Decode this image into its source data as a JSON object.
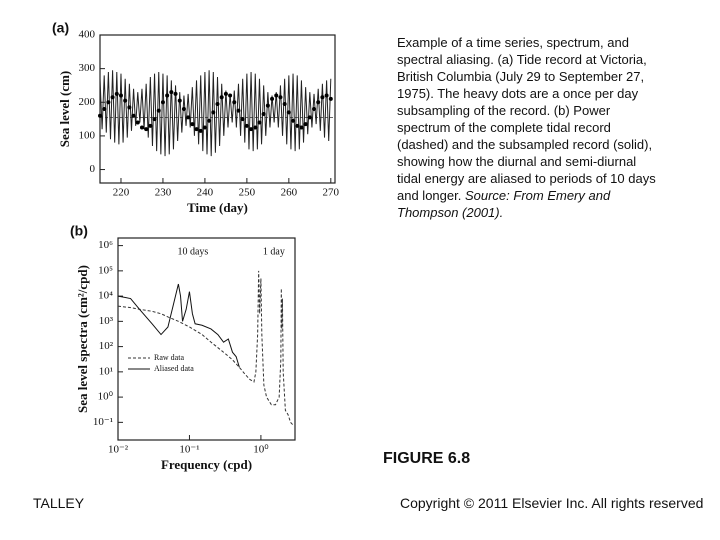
{
  "chart_data": [
    {
      "type": "line",
      "panel_label": "(a)",
      "x_label": "Time (day)",
      "y_label": "Sea level (cm)",
      "xlim": [
        215,
        271
      ],
      "ylim": [
        -40,
        400
      ],
      "xticks": [
        220,
        230,
        240,
        250,
        260,
        270
      ],
      "yticks": [
        0,
        100,
        200,
        300,
        400
      ],
      "hline": 155,
      "series": [
        {
          "color": "#222222",
          "linestyle": "solid",
          "x": [
            215,
            215.5,
            216,
            216.5,
            217,
            217.5,
            218,
            218.5,
            219,
            219.5,
            220,
            220.5,
            221,
            221.5,
            222,
            222.5,
            223,
            223.5,
            224,
            224.5,
            225,
            225.5,
            226,
            226.5,
            227,
            227.5,
            228,
            228.5,
            229,
            229.5,
            230,
            230.5,
            231,
            231.5,
            232,
            232.5,
            233,
            233.5,
            234,
            234.5,
            235,
            235.5,
            236,
            236.5,
            237,
            237.5,
            238,
            238.5,
            239,
            239.5,
            240,
            240.5,
            241,
            241.5,
            242,
            242.5,
            243,
            243.5,
            244,
            244.5,
            245,
            245.5,
            246,
            246.5,
            247,
            247.5,
            248,
            248.5,
            249,
            249.5,
            250,
            250.5,
            251,
            251.5,
            252,
            252.5,
            253,
            253.5,
            254,
            254.5,
            255,
            255.5,
            256,
            256.5,
            257,
            257.5,
            258,
            258.5,
            259,
            259.5,
            260,
            260.5,
            261,
            261.5,
            262,
            262.5,
            263,
            263.5,
            264,
            264.5,
            265,
            265.5,
            266,
            266.5,
            267,
            267.5,
            268,
            268.5,
            269,
            269.5,
            270
          ],
          "values": [
            270,
            120,
            280,
            110,
            290,
            90,
            295,
            80,
            290,
            75,
            285,
            80,
            270,
            95,
            255,
            115,
            240,
            130,
            230,
            140,
            240,
            120,
            255,
            95,
            275,
            70,
            285,
            55,
            290,
            45,
            285,
            40,
            280,
            45,
            265,
            60,
            250,
            85,
            230,
            110,
            220,
            130,
            225,
            125,
            245,
            100,
            265,
            75,
            280,
            55,
            290,
            45,
            295,
            40,
            290,
            50,
            275,
            70,
            255,
            100,
            235,
            125,
            225,
            140,
            235,
            125,
            255,
            100,
            270,
            80,
            285,
            60,
            290,
            55,
            285,
            60,
            270,
            75,
            250,
            100,
            230,
            125,
            220,
            140,
            230,
            125,
            250,
            100,
            270,
            75,
            280,
            60,
            285,
            55,
            280,
            60,
            265,
            80,
            245,
            105,
            230,
            125,
            225,
            135,
            240,
            115,
            255,
            95,
            265,
            85,
            270
          ]
        },
        {
          "color": "#000000",
          "marker": "dot",
          "x": [
            215,
            216,
            217,
            218,
            219,
            220,
            221,
            222,
            223,
            224,
            225,
            226,
            227,
            228,
            229,
            230,
            231,
            232,
            233,
            234,
            235,
            236,
            237,
            238,
            239,
            240,
            241,
            242,
            243,
            244,
            245,
            246,
            247,
            248,
            249,
            250,
            251,
            252,
            253,
            254,
            255,
            256,
            257,
            258,
            259,
            260,
            261,
            262,
            263,
            264,
            265,
            266,
            267,
            268,
            269,
            270
          ],
          "values": [
            160,
            180,
            200,
            215,
            225,
            220,
            205,
            185,
            160,
            140,
            125,
            120,
            130,
            150,
            175,
            200,
            220,
            230,
            225,
            205,
            180,
            155,
            135,
            120,
            115,
            125,
            145,
            170,
            195,
            215,
            225,
            220,
            200,
            175,
            150,
            130,
            120,
            125,
            140,
            165,
            190,
            210,
            220,
            215,
            195,
            170,
            145,
            130,
            125,
            135,
            155,
            180,
            200,
            215,
            220,
            210
          ]
        }
      ]
    },
    {
      "type": "line",
      "panel_label": "(b)",
      "x_label": "Frequency (cpd)",
      "y_label": "Sea level spectra (cm²/cpd)",
      "xscale": "log",
      "yscale": "log",
      "xlim": [
        0.01,
        3
      ],
      "ylim": [
        0.02,
        2000000
      ],
      "xticks": [
        {
          "value": 0.01,
          "label": "10⁻²"
        },
        {
          "value": 0.1,
          "label": "10⁻¹"
        },
        {
          "value": 1,
          "label": "10⁰"
        }
      ],
      "yticks": [
        {
          "value": 0.1,
          "label": "10⁻¹"
        },
        {
          "value": 1,
          "label": "10⁰"
        },
        {
          "value": 10,
          "label": "10¹"
        },
        {
          "value": 100,
          "label": "10²"
        },
        {
          "value": 1000,
          "label": "10³"
        },
        {
          "value": 10000,
          "label": "10⁴"
        },
        {
          "value": 100000,
          "label": "10⁵"
        },
        {
          "value": 1000000,
          "label": "10⁶"
        }
      ],
      "annotations": [
        "10 days",
        "1 day"
      ],
      "legend": "lower-left",
      "series": [
        {
          "name": "Raw data",
          "color": "#333333",
          "linestyle": "dashed",
          "x": [
            0.01,
            0.015,
            0.02,
            0.03,
            0.04,
            0.05,
            0.07,
            0.1,
            0.15,
            0.2,
            0.3,
            0.4,
            0.5,
            0.6,
            0.7,
            0.8,
            0.85,
            0.9,
            0.93,
            0.96,
            1.0,
            1.03,
            1.1,
            1.2,
            1.4,
            1.6,
            1.8,
            1.9,
            1.93,
            1.96,
            2.0,
            2.05,
            2.2,
            2.4,
            2.6,
            2.8
          ],
          "values": [
            4000,
            3500,
            3000,
            2500,
            2000,
            1500,
            1000,
            600,
            300,
            150,
            60,
            30,
            15,
            8,
            5,
            4,
            10,
            300,
            100000,
            2000,
            50000,
            300,
            3,
            1,
            0.5,
            0.5,
            1,
            30,
            20000,
            500,
            8000,
            10,
            0.3,
            0.2,
            0.1,
            0.08
          ]
        },
        {
          "name": "Aliased data",
          "color": "#111111",
          "linestyle": "solid",
          "x": [
            0.01,
            0.015,
            0.02,
            0.03,
            0.04,
            0.05,
            0.06,
            0.07,
            0.075,
            0.08,
            0.09,
            0.1,
            0.11,
            0.12,
            0.15,
            0.2,
            0.25,
            0.3,
            0.35,
            0.4,
            0.45,
            0.5
          ],
          "values": [
            10000,
            8000,
            3000,
            800,
            300,
            600,
            5000,
            30000,
            10000,
            1000,
            3000,
            15000,
            2000,
            800,
            700,
            500,
            300,
            150,
            200,
            60,
            40,
            15
          ]
        }
      ]
    }
  ],
  "caption": "Example of a time series, spectrum, and spectral aliasing. (a) Tide record at Victoria, British Columbia (July 29 to September 27, 1975). The heavy dots are a once per day subsampling of the record. (b) Power spectrum of the complete tidal record (dashed) and the subsampled record (solid), showing how the diurnal and semi-diurnal tidal energy are aliased to periods of 10 days and longer.",
  "caption_source": "Source: From Emery and Thompson (2001).",
  "figure_label": "FIGURE 6.8",
  "footer_left": "TALLEY",
  "footer_right": "Copyright © 2011 Elsevier Inc. All rights reserved"
}
